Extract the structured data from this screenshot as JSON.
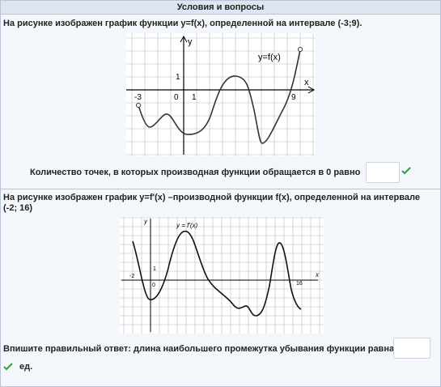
{
  "header": {
    "title": "Условия и вопросы"
  },
  "questions": [
    {
      "text": "На рисунке изображен график функции y=f(x), определенной на интервале (-3;9).",
      "graph": {
        "y_axis": "y",
        "x_axis": "x",
        "function": "y=f(x)",
        "labels": [
          "-3",
          "0",
          "1",
          "9",
          "1"
        ]
      },
      "prompt": "Количество точек, в которых производная функции обращается в 0 равно"
    },
    {
      "text": "На рисунке изображен график y=f'(x) –производной функции f(x), определенной на интервале (-2; 16)",
      "graph": {
        "y_axis": "y",
        "x_axis": "x",
        "function": "y = f'(x)",
        "labels": [
          "-2",
          "0",
          "1",
          "16"
        ]
      },
      "prompt": "Впишите правильный ответ: длина наибольшего промежутка убывания функции равна",
      "unit": "ед."
    }
  ]
}
